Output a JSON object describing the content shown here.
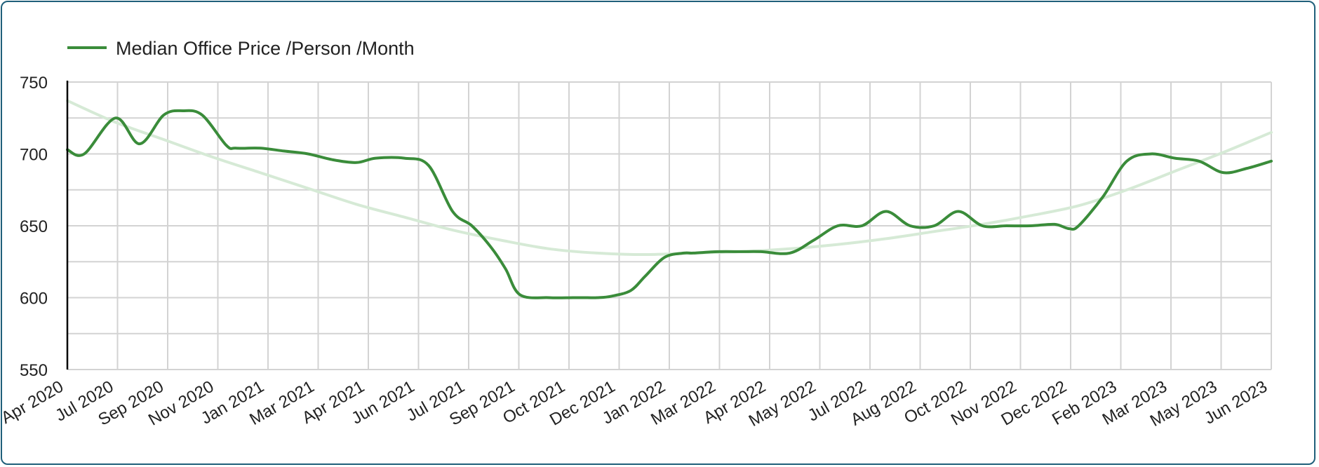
{
  "colors": {
    "series": "#3a8c3a",
    "trend": "#d6ead6",
    "grid": "#d3d3d3",
    "axis": "#000000",
    "border": "#1f5f7a"
  },
  "legend": {
    "label": "Median Office Price /Person /Month",
    "position": "top-left"
  },
  "chart_data": {
    "type": "line",
    "grid": true,
    "ylim": [
      550,
      750
    ],
    "yticks": [
      550,
      600,
      650,
      700,
      750
    ],
    "categories": [
      "Apr 2020",
      "Jul 2020",
      "Sep 2020",
      "Nov 2020",
      "Jan 2021",
      "Mar 2021",
      "Apr 2021",
      "Jun 2021",
      "Jul 2021",
      "Sep 2021",
      "Oct 2021",
      "Dec 2021",
      "Jan 2022",
      "Mar 2022",
      "Apr 2022",
      "May 2022",
      "Jul 2022",
      "Aug 2022",
      "Oct 2022",
      "Nov 2022",
      "Dec 2022",
      "Feb 2023",
      "Mar 2023",
      "May 2023",
      "Jun 2023"
    ],
    "series": [
      {
        "name": "Median Office Price /Person /Month",
        "x": [
          0,
          0.35,
          1,
          1.5,
          2,
          2.4,
          2.8,
          3.3,
          3.5,
          4,
          4.5,
          5,
          5.5,
          6,
          6.4,
          7,
          7.5,
          8,
          8.4,
          8.8,
          9.1,
          9.4,
          10,
          10.5,
          10.8,
          11,
          11.3,
          11.7,
          12,
          12.4,
          12.8,
          13,
          13.5,
          14,
          14.4,
          15,
          15.5,
          16,
          16.5,
          17,
          17.5,
          18,
          18.5,
          19,
          19.5,
          20,
          20.5,
          20.8,
          21,
          21.5,
          22,
          22.5,
          23,
          23.5,
          24,
          24.5,
          25
        ],
        "values": [
          703,
          700,
          725,
          707,
          727,
          730,
          727,
          706,
          704,
          704,
          702,
          700,
          696,
          694,
          697,
          697,
          692,
          660,
          650,
          635,
          620,
          602,
          600,
          600,
          600,
          600,
          601,
          605,
          615,
          628,
          631,
          631,
          632,
          632,
          632,
          631,
          640,
          650,
          650,
          660,
          650,
          650,
          660,
          650,
          650,
          650,
          651,
          648,
          650,
          670,
          695,
          700,
          697,
          695,
          687,
          690,
          695
        ]
      },
      {
        "name": "",
        "trendline": true,
        "x": [
          0,
          1,
          2,
          3,
          4,
          5,
          6,
          7,
          8,
          9,
          10,
          11,
          12,
          13,
          14,
          15,
          16,
          17,
          18,
          19,
          20,
          21,
          22,
          23,
          24,
          25
        ],
        "values": [
          737,
          722,
          710,
          698,
          687,
          676,
          665,
          656,
          647,
          640,
          634,
          631,
          630,
          631,
          632,
          634,
          637,
          641,
          646,
          651,
          657,
          664,
          675,
          688,
          701,
          715
        ]
      }
    ]
  }
}
